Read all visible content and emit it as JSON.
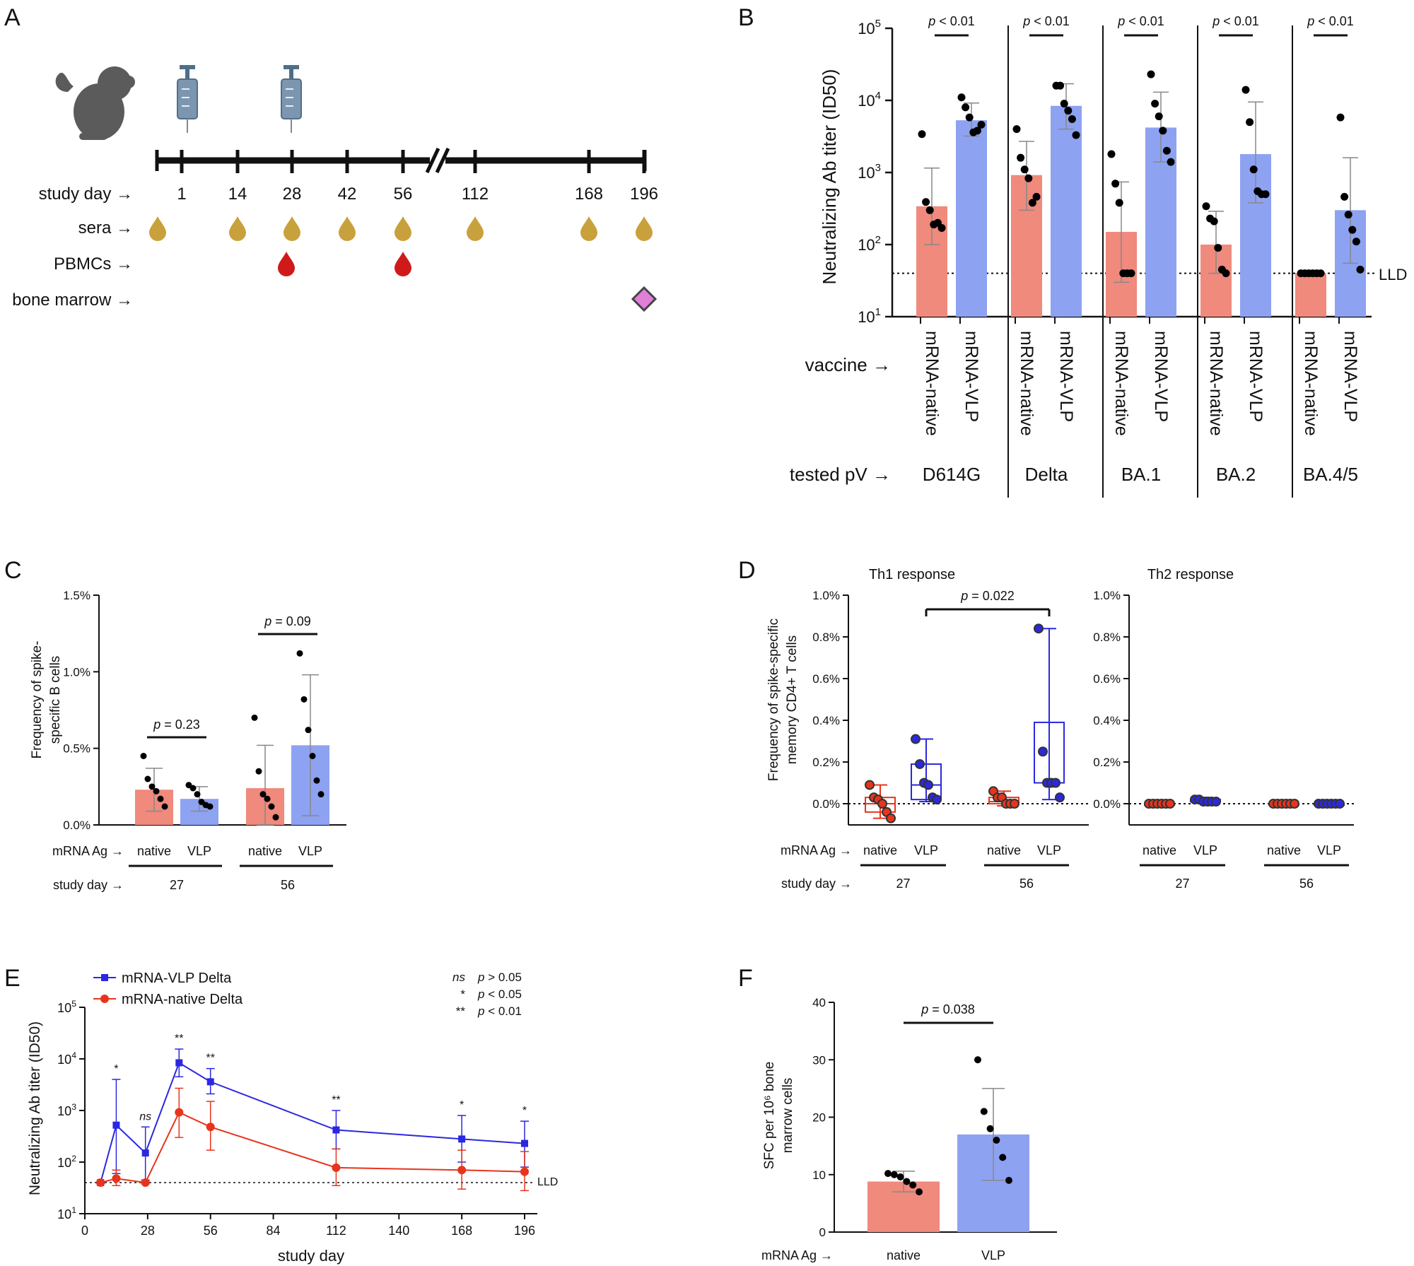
{
  "panels": {
    "A": {
      "letter": "A",
      "days": [
        "1",
        "14",
        "28",
        "42",
        "56",
        "112",
        "168",
        "196"
      ],
      "row_labels": {
        "day": "study day →",
        "sera": "sera →",
        "pbmc": "PBMCs →",
        "bm": "bone marrow →"
      },
      "colors": {
        "sera": "#c9a13c",
        "pbmc": "#d01a1a",
        "bm": "#e07fd8",
        "timeline": "#111111"
      }
    },
    "B": {
      "letter": "B"
    },
    "C": {
      "letter": "C"
    },
    "D": {
      "letter": "D"
    },
    "E": {
      "letter": "E"
    },
    "F": {
      "letter": "F"
    }
  },
  "colors": {
    "native": "#ef8a7d",
    "vlp": "#8ea2f2",
    "red": "#e8341c",
    "blue": "#2b28e0",
    "err": "#888888"
  },
  "chart_data": [
    {
      "panel": "B",
      "type": "bar",
      "yscale": "log",
      "ylim": [
        10,
        100000
      ],
      "title": "",
      "ylabel": "Neutralizing Ab titer (ID50)",
      "yticks": [
        {
          "base": "10",
          "exp": "1"
        },
        {
          "base": "10",
          "exp": "2"
        },
        {
          "base": "10",
          "exp": "3"
        },
        {
          "base": "10",
          "exp": "4"
        },
        {
          "base": "10",
          "exp": "5"
        }
      ],
      "row_label_vaccine": "vaccine →",
      "row_label_pv": "tested pV →",
      "lld_label": "LLD",
      "lld": 40,
      "p_prefix": "p",
      "p_suffix": "< 0.01",
      "groups": [
        {
          "pv": "D614G",
          "bars": [
            {
              "name": "mRNA-native",
              "mean": 340,
              "err_lo": 100,
              "err_hi": 1150,
              "points": [
                3400,
                390,
                300,
                190,
                200,
                170
              ]
            },
            {
              "name": "mRNA-VLP",
              "mean": 5300,
              "err_lo": 3200,
              "err_hi": 9200,
              "points": [
                11000,
                8000,
                5800,
                3600,
                3800,
                4600
              ]
            }
          ]
        },
        {
          "pv": "Delta",
          "bars": [
            {
              "name": "mRNA-native",
              "mean": 920,
              "err_lo": 300,
              "err_hi": 2700,
              "points": [
                4000,
                1600,
                1100,
                830,
                380,
                460
              ]
            },
            {
              "name": "mRNA-VLP",
              "mean": 8400,
              "err_lo": 4000,
              "err_hi": 17000,
              "points": [
                16000,
                16000,
                9000,
                7200,
                5500,
                3300
              ]
            }
          ]
        },
        {
          "pv": "BA.1",
          "bars": [
            {
              "name": "mRNA-native",
              "mean": 150,
              "err_lo": 30,
              "err_hi": 740,
              "points": [
                1800,
                700,
                380,
                40,
                40,
                40
              ]
            },
            {
              "name": "mRNA-VLP",
              "mean": 4200,
              "err_lo": 1400,
              "err_hi": 13000,
              "points": [
                23000,
                9000,
                6000,
                3800,
                2000,
                1400
              ]
            }
          ]
        },
        {
          "pv": "BA.2",
          "bars": [
            {
              "name": "mRNA-native",
              "mean": 100,
              "err_lo": 40,
              "err_hi": 290,
              "points": [
                340,
                230,
                210,
                90,
                45,
                40
              ]
            },
            {
              "name": "mRNA-VLP",
              "mean": 1800,
              "err_lo": 380,
              "err_hi": 9500,
              "points": [
                14000,
                5000,
                1100,
                550,
                500,
                500
              ]
            }
          ]
        },
        {
          "pv": "BA.4/5",
          "bars": [
            {
              "name": "mRNA-native",
              "mean": 40,
              "err_lo": 38,
              "err_hi": 42,
              "points": [
                40,
                40,
                40,
                40,
                40,
                40
              ]
            },
            {
              "name": "mRNA-VLP",
              "mean": 300,
              "err_lo": 55,
              "err_hi": 1600,
              "points": [
                5800,
                460,
                260,
                160,
                110,
                45
              ]
            }
          ]
        }
      ]
    },
    {
      "panel": "C",
      "type": "bar",
      "ylim": [
        0,
        1.5
      ],
      "ylabel_line1": "Frequency of spike-",
      "ylabel_line2": "specific B cells",
      "yticks": [
        "0.0%",
        "0.5%",
        "1.0%",
        "1.5%"
      ],
      "row_label_ag": "mRNA Ag →",
      "row_label_day": "study day →",
      "groups": [
        {
          "day": "27",
          "p": "= 0.23",
          "bars": [
            {
              "name": "native",
              "mean": 0.23,
              "sd": 0.14,
              "points": [
                0.45,
                0.3,
                0.25,
                0.22,
                0.17,
                0.12
              ]
            },
            {
              "name": "VLP",
              "mean": 0.17,
              "sd": 0.08,
              "points": [
                0.26,
                0.24,
                0.2,
                0.15,
                0.13,
                0.12
              ]
            }
          ]
        },
        {
          "day": "56",
          "p": "= 0.09",
          "bars": [
            {
              "name": "native",
              "mean": 0.24,
              "sd": 0.28,
              "points": [
                0.7,
                0.35,
                0.2,
                0.17,
                0.12,
                0.05
              ]
            },
            {
              "name": "VLP",
              "mean": 0.52,
              "sd": 0.46,
              "points": [
                1.12,
                0.82,
                0.62,
                0.45,
                0.29,
                0.2
              ]
            }
          ]
        }
      ]
    },
    {
      "panel": "D",
      "type": "box",
      "ylim": [
        -0.1,
        1.0
      ],
      "ylabel_line1": "Frequency of spike-specific",
      "ylabel_line2": "memory CD4+ T cells",
      "yticks": [
        "0.0%",
        "0.2%",
        "0.4%",
        "0.6%",
        "0.8%",
        "1.0%"
      ],
      "row_label_ag": "mRNA Ag →",
      "row_label_day": "study day →",
      "subplots": [
        {
          "title": "Th1 response",
          "p": "= 0.022",
          "groups": [
            {
              "day": "27",
              "boxes": [
                {
                  "name": "native",
                  "min": -0.07,
                  "q1": -0.04,
                  "med": 0.0,
                  "q3": 0.03,
                  "max": 0.09,
                  "points": [
                    0.09,
                    0.03,
                    0.02,
                    0.0,
                    -0.04,
                    -0.07
                  ]
                },
                {
                  "name": "VLP",
                  "min": 0.01,
                  "q1": 0.02,
                  "med": 0.09,
                  "q3": 0.19,
                  "max": 0.31,
                  "points": [
                    0.31,
                    0.19,
                    0.1,
                    0.09,
                    0.03,
                    0.02
                  ]
                }
              ]
            },
            {
              "day": "56",
              "boxes": [
                {
                  "name": "native",
                  "min": -0.01,
                  "q1": 0.0,
                  "med": 0.01,
                  "q3": 0.03,
                  "max": 0.06,
                  "points": [
                    0.06,
                    0.03,
                    0.03,
                    0.0,
                    0.0,
                    0.0
                  ]
                },
                {
                  "name": "VLP",
                  "min": 0.02,
                  "q1": 0.1,
                  "med": 0.1,
                  "q3": 0.39,
                  "max": 0.84,
                  "points": [
                    0.84,
                    0.25,
                    0.1,
                    0.1,
                    0.1,
                    0.03
                  ]
                }
              ]
            }
          ]
        },
        {
          "title": "Th2 response",
          "groups": [
            {
              "day": "27",
              "boxes": [
                {
                  "name": "native",
                  "min": -0.01,
                  "q1": 0.0,
                  "med": 0.0,
                  "q3": 0.0,
                  "max": 0.01,
                  "points": [
                    0.0,
                    0.0,
                    0.0,
                    0.0,
                    0.0,
                    0.0
                  ]
                },
                {
                  "name": "VLP",
                  "min": 0.0,
                  "q1": 0.01,
                  "med": 0.01,
                  "q3": 0.02,
                  "max": 0.03,
                  "points": [
                    0.02,
                    0.02,
                    0.01,
                    0.01,
                    0.01,
                    0.01
                  ]
                }
              ]
            },
            {
              "day": "56",
              "boxes": [
                {
                  "name": "native",
                  "min": 0.0,
                  "q1": 0.0,
                  "med": 0.0,
                  "q3": 0.0,
                  "max": 0.0,
                  "points": [
                    0.0,
                    0.0,
                    0.0,
                    0.0,
                    0.0,
                    0.0
                  ]
                },
                {
                  "name": "VLP",
                  "min": 0.0,
                  "q1": 0.0,
                  "med": 0.0,
                  "q3": 0.0,
                  "max": 0.0,
                  "points": [
                    0.0,
                    0.0,
                    0.0,
                    0.0,
                    0.0,
                    0.0
                  ]
                }
              ]
            }
          ]
        }
      ]
    },
    {
      "panel": "E",
      "type": "line",
      "yscale": "log",
      "ylim": [
        10,
        100000
      ],
      "xlim": [
        0,
        200
      ],
      "xlabel": "study day",
      "ylabel": "Neutralizing Ab titer (ID50)",
      "xticks": [
        0,
        28,
        56,
        84,
        112,
        140,
        168,
        196
      ],
      "yticks": [
        {
          "base": "10",
          "exp": "1"
        },
        {
          "base": "10",
          "exp": "2"
        },
        {
          "base": "10",
          "exp": "3"
        },
        {
          "base": "10",
          "exp": "4"
        },
        {
          "base": "10",
          "exp": "5"
        }
      ],
      "lld_label": "LLD",
      "lld": 40,
      "series": [
        {
          "name": "mRNA-VLP Delta",
          "x": [
            7,
            14,
            27,
            42,
            56,
            112,
            168,
            196
          ],
          "y": [
            40,
            520,
            150,
            8400,
            3600,
            420,
            280,
            230
          ],
          "err_lo": [
            38,
            60,
            45,
            4500,
            2100,
            180,
            100,
            80
          ],
          "err_hi": [
            42,
            4000,
            480,
            15500,
            6500,
            1000,
            800,
            620
          ]
        },
        {
          "name": "mRNA-native Delta",
          "x": [
            7,
            14,
            27,
            42,
            56,
            112,
            168,
            196
          ],
          "y": [
            40,
            48,
            40,
            920,
            480,
            78,
            70,
            65
          ],
          "err_lo": [
            38,
            35,
            38,
            300,
            170,
            35,
            30,
            28
          ],
          "err_hi": [
            42,
            70,
            42,
            2700,
            1500,
            180,
            170,
            160
          ]
        }
      ],
      "sig": [
        {
          "x": 14,
          "y": 4000,
          "label": "*"
        },
        {
          "x": 27,
          "y": 480,
          "label": "ns"
        },
        {
          "x": 42,
          "y": 15500,
          "label": "**"
        },
        {
          "x": 56,
          "y": 6500,
          "label": "**"
        },
        {
          "x": 112,
          "y": 1000,
          "label": "**"
        },
        {
          "x": 168,
          "y": 800,
          "label": "*"
        },
        {
          "x": 196,
          "y": 620,
          "label": "*"
        }
      ],
      "sig_legend": [
        {
          "sym": "ns",
          "text": "p > 0.05"
        },
        {
          "sym": "*",
          "text": "p < 0.05"
        },
        {
          "sym": "**",
          "text": "p < 0.01"
        }
      ]
    },
    {
      "panel": "F",
      "type": "bar",
      "ylim": [
        0,
        40
      ],
      "ylabel_line1": "SFC per 10⁶ bone",
      "ylabel_line2": "marrow cells",
      "yticks": [
        "0",
        "10",
        "20",
        "30",
        "40"
      ],
      "row_label_ag": "mRNA Ag →",
      "p": "= 0.038",
      "bars": [
        {
          "name": "native",
          "mean": 8.8,
          "sd": 1.8,
          "points": [
            10.2,
            10.0,
            9.6,
            8.8,
            8.2,
            7.0
          ]
        },
        {
          "name": "VLP",
          "mean": 17.0,
          "sd": 8.0,
          "points": [
            30.0,
            21.0,
            18.0,
            16.0,
            13.0,
            9.0
          ]
        }
      ]
    }
  ]
}
